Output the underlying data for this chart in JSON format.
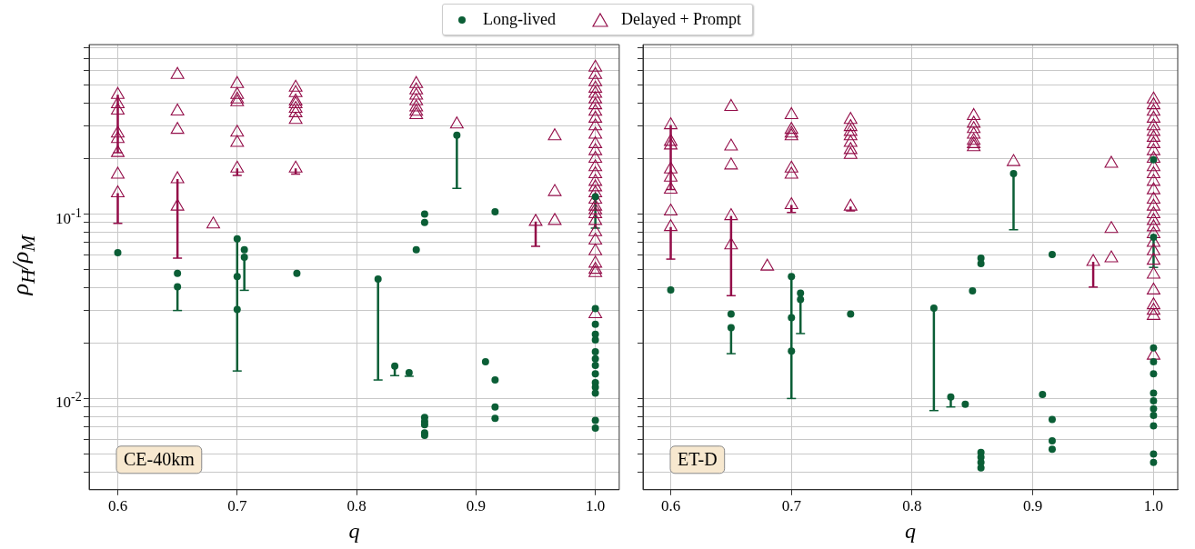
{
  "chart_data": [
    {
      "type": "scatter",
      "xlabel": "q",
      "ylabel": "ρ$_{H}$/ρ$_{M}$",
      "annotations": [
        "CE-40km"
      ],
      "log": "y",
      "grid": true,
      "legend": "top",
      "xlim": [
        0.576,
        1.02
      ],
      "xticks": [
        0.6,
        0.7,
        0.8,
        0.9,
        {
          "value": 1.0,
          "label": "1.0"
        }
      ],
      "ylim": [
        0.0032,
        0.83
      ],
      "yticks": [
        {
          "value": 0.004,
          "label": null
        },
        {
          "value": 0.005,
          "label": null
        },
        {
          "value": 0.006,
          "label": null
        },
        {
          "value": 0.007,
          "label": null
        },
        {
          "value": 0.008,
          "label": null
        },
        {
          "value": 0.009,
          "label": null
        },
        {
          "value": 0.01,
          "label": "10$^{-2}$"
        },
        {
          "value": 0.02,
          "label": null
        },
        {
          "value": 0.03,
          "label": null
        },
        {
          "value": 0.04,
          "label": null
        },
        {
          "value": 0.05,
          "label": null
        },
        {
          "value": 0.06,
          "label": null
        },
        {
          "value": 0.07,
          "label": null
        },
        {
          "value": 0.08,
          "label": null
        },
        {
          "value": 0.09,
          "label": null
        },
        {
          "value": 0.1,
          "label": "10$^{-1}$"
        },
        {
          "value": 0.2,
          "label": null
        },
        {
          "value": 0.3,
          "label": null
        },
        {
          "value": 0.4,
          "label": null
        },
        {
          "value": 0.5,
          "label": null
        },
        {
          "value": 0.6,
          "label": null
        },
        {
          "value": 0.7,
          "label": null
        },
        {
          "value": 0.8,
          "label": null
        }
      ],
      "series": [
        {
          "name": "Long-lived",
          "color": "#0b5e36",
          "marker": "circle",
          "x": [
            0.6,
            0.65,
            0.65,
            0.7,
            0.7,
            0.7,
            0.706,
            0.706,
            0.75,
            0.818,
            0.832,
            0.844,
            0.85,
            0.857,
            0.857,
            0.857,
            0.857,
            0.857,
            0.857,
            0.857,
            0.884,
            0.908,
            0.916,
            0.916,
            0.916,
            0.916,
            1.0,
            1.0,
            1.0,
            1.0,
            1.0,
            1.0,
            1.0,
            1.0,
            1.0,
            1.0,
            1.0,
            1.0,
            1.0,
            1.0
          ],
          "values": [
            0.0618,
            0.0477,
            0.0404,
            0.0734,
            0.0459,
            0.0304,
            0.064,
            0.0584,
            0.0477,
            0.0445,
            0.015,
            0.0138,
            0.064,
            0.1,
            0.09,
            0.0079,
            0.0075,
            0.0072,
            0.0065,
            0.0063,
            0.268,
            0.0158,
            0.103,
            0.0126,
            0.009,
            0.0078,
            0.124,
            0.0307,
            0.0253,
            0.0223,
            0.0208,
            0.0179,
            0.0164,
            0.0151,
            0.0136,
            0.0122,
            0.0115,
            0.0107,
            0.0076,
            0.0069
          ],
          "errors": [
            null,
            null,
            [
              0.03,
              0.0404
            ],
            [
              0.0141,
              0.0734
            ],
            null,
            null,
            null,
            [
              0.0386,
              0.0584
            ],
            null,
            [
              0.0126,
              0.0445
            ],
            [
              0.0133,
              0.015
            ],
            [
              0.0132,
              0.0138
            ],
            null,
            null,
            null,
            null,
            null,
            null,
            null,
            null,
            [
              0.138,
              0.268
            ],
            null,
            null,
            null,
            null,
            null,
            [
              0.084,
              0.124
            ],
            null,
            null,
            null,
            null,
            null,
            null,
            null,
            null,
            null,
            null,
            null,
            null,
            null
          ]
        },
        {
          "name": "Delayed + Prompt",
          "color": "#930c48",
          "marker": "triangle",
          "x": [
            0.6,
            0.6,
            0.6,
            0.6,
            0.6,
            0.6,
            0.6,
            0.6,
            0.65,
            0.65,
            0.65,
            0.65,
            0.65,
            0.68,
            0.7,
            0.7,
            0.7,
            0.7,
            0.7,
            0.7,
            0.7,
            0.749,
            0.749,
            0.749,
            0.749,
            0.749,
            0.749,
            0.749,
            0.749,
            0.85,
            0.85,
            0.85,
            0.85,
            0.85,
            0.85,
            0.85,
            0.884,
            0.95,
            0.966,
            0.966,
            0.966,
            1.0,
            1.0,
            1.0,
            1.0,
            1.0,
            1.0,
            1.0,
            1.0,
            1.0,
            1.0,
            1.0,
            1.0,
            1.0,
            1.0,
            1.0,
            1.0,
            1.0,
            1.0,
            1.0,
            1.0,
            1.0,
            1.0,
            1.0,
            1.0,
            1.0,
            1.0,
            1.0,
            1.0,
            1.0,
            1.0,
            1.0
          ],
          "values": [
            0.444,
            0.395,
            0.365,
            0.274,
            0.256,
            0.215,
            0.164,
            0.13,
            0.57,
            0.361,
            0.287,
            0.155,
            0.11,
            0.088,
            0.509,
            0.444,
            0.419,
            0.405,
            0.277,
            0.244,
            0.177,
            0.486,
            0.454,
            0.409,
            0.395,
            0.373,
            0.353,
            0.325,
            0.177,
            0.509,
            0.47,
            0.44,
            0.41,
            0.38,
            0.36,
            0.345,
            0.307,
            0.091,
            0.265,
            0.132,
            0.092,
            0.624,
            0.57,
            0.52,
            0.48,
            0.45,
            0.42,
            0.39,
            0.36,
            0.33,
            0.3,
            0.27,
            0.24,
            0.22,
            0.2,
            0.18,
            0.165,
            0.15,
            0.14,
            0.13,
            0.12,
            0.11,
            0.105,
            0.1,
            0.092,
            0.08,
            0.072,
            0.063,
            0.054,
            0.05,
            0.048,
            0.0287
          ],
          "errors": [
            [
              0.215,
              0.444
            ],
            null,
            null,
            null,
            null,
            null,
            null,
            [
              0.089,
              0.13
            ],
            null,
            null,
            null,
            [
              0.0577,
              0.155
            ],
            null,
            null,
            null,
            null,
            null,
            null,
            null,
            null,
            [
              0.162,
              0.177
            ],
            null,
            null,
            null,
            null,
            null,
            null,
            null,
            [
              0.165,
              0.177
            ],
            null,
            null,
            null,
            null,
            null,
            null,
            null,
            null,
            [
              0.0669,
              0.091
            ],
            null,
            null,
            null,
            null,
            null,
            null,
            null,
            null,
            null,
            null,
            null,
            null,
            null,
            null,
            null,
            null,
            null,
            null,
            null,
            null,
            null,
            null,
            null,
            null,
            null,
            null,
            null,
            null,
            null,
            null,
            null,
            null,
            null,
            null
          ]
        }
      ]
    },
    {
      "type": "scatter",
      "xlabel": "q",
      "annotations": [
        "ET-D"
      ],
      "log": "y",
      "grid": true,
      "tick_labels": "x",
      "xlim": [
        0.577,
        1.02
      ],
      "xticks": [
        0.6,
        0.7,
        0.8,
        0.9,
        {
          "value": 1.0,
          "label": "1.0"
        }
      ],
      "ylim": [
        0.0032,
        0.83
      ],
      "yticks": [
        {
          "value": 0.004,
          "label": null
        },
        {
          "value": 0.005,
          "label": null
        },
        {
          "value": 0.006,
          "label": null
        },
        {
          "value": 0.007,
          "label": null
        },
        {
          "value": 0.008,
          "label": null
        },
        {
          "value": 0.009,
          "label": null
        },
        {
          "value": 0.01,
          "label": null
        },
        {
          "value": 0.02,
          "label": null
        },
        {
          "value": 0.03,
          "label": null
        },
        {
          "value": 0.04,
          "label": null
        },
        {
          "value": 0.05,
          "label": null
        },
        {
          "value": 0.06,
          "label": null
        },
        {
          "value": 0.07,
          "label": null
        },
        {
          "value": 0.08,
          "label": null
        },
        {
          "value": 0.09,
          "label": null
        },
        {
          "value": 0.1,
          "label": null
        },
        {
          "value": 0.2,
          "label": null
        },
        {
          "value": 0.3,
          "label": null
        },
        {
          "value": 0.4,
          "label": null
        },
        {
          "value": 0.5,
          "label": null
        },
        {
          "value": 0.6,
          "label": null
        },
        {
          "value": 0.7,
          "label": null
        },
        {
          "value": 0.8,
          "label": null
        }
      ],
      "series": [
        {
          "color": "#0b5e36",
          "marker": "circle",
          "x": [
            0.6,
            0.65,
            0.65,
            0.7,
            0.7,
            0.7,
            0.7075,
            0.7075,
            0.749,
            0.818,
            0.832,
            0.844,
            0.85,
            0.857,
            0.857,
            0.857,
            0.857,
            0.857,
            0.857,
            0.884,
            0.908,
            0.916,
            0.916,
            0.916,
            0.916,
            1.0,
            1.0,
            1.0,
            1.0,
            1.0,
            1.0,
            1.0,
            1.0,
            1.0,
            1.0,
            1.0,
            1.0
          ],
          "values": [
            0.0388,
            0.0287,
            0.0242,
            0.0459,
            0.0274,
            0.0181,
            0.0373,
            0.0344,
            0.0287,
            0.0309,
            0.0102,
            0.0093,
            0.0383,
            0.0577,
            0.0539,
            0.0051,
            0.0048,
            0.0045,
            0.0042,
            0.166,
            0.0105,
            0.0604,
            0.0077,
            0.0059,
            0.0053,
            0.197,
            0.075,
            0.0188,
            0.0158,
            0.0136,
            0.0107,
            0.0097,
            0.0088,
            0.0081,
            0.0071,
            0.005,
            0.0045
          ],
          "errors": [
            null,
            null,
            [
              0.0175,
              0.0242
            ],
            [
              0.01,
              0.0459
            ],
            null,
            null,
            null,
            [
              0.0225,
              0.0344
            ],
            null,
            [
              0.0086,
              0.0309
            ],
            [
              0.009,
              0.0102
            ],
            null,
            null,
            null,
            null,
            null,
            null,
            null,
            null,
            [
              0.0823,
              0.166
            ],
            null,
            null,
            null,
            null,
            null,
            null,
            [
              0.0514,
              0.075
            ],
            null,
            null,
            null,
            null,
            null,
            null,
            null,
            null,
            null,
            null
          ]
        },
        {
          "color": "#930c48",
          "marker": "triangle",
          "x": [
            0.6,
            0.6,
            0.6,
            0.6,
            0.6,
            0.6,
            0.6,
            0.6,
            0.65,
            0.65,
            0.65,
            0.65,
            0.65,
            0.68,
            0.7,
            0.7,
            0.7,
            0.7,
            0.7,
            0.7,
            0.7,
            0.749,
            0.749,
            0.749,
            0.749,
            0.749,
            0.749,
            0.749,
            0.749,
            0.851,
            0.851,
            0.851,
            0.851,
            0.851,
            0.851,
            0.851,
            0.884,
            0.95,
            0.965,
            0.965,
            0.965,
            1.0,
            1.0,
            1.0,
            1.0,
            1.0,
            1.0,
            1.0,
            1.0,
            1.0,
            1.0,
            1.0,
            1.0,
            1.0,
            1.0,
            1.0,
            1.0,
            1.0,
            1.0,
            1.0,
            1.0,
            1.0,
            1.0,
            1.0,
            1.0,
            1.0,
            1.0,
            1.0,
            1.0,
            1.0
          ],
          "values": [
            0.304,
            0.247,
            0.236,
            0.175,
            0.158,
            0.136,
            0.1035,
            0.0852,
            0.382,
            0.233,
            0.184,
            0.0977,
            0.0678,
            0.052,
            0.345,
            0.287,
            0.274,
            0.265,
            0.177,
            0.164,
            0.112,
            0.325,
            0.297,
            0.28,
            0.265,
            0.244,
            0.223,
            0.21,
            0.11,
            0.341,
            0.31,
            0.29,
            0.27,
            0.25,
            0.24,
            0.231,
            0.192,
            0.0551,
            0.188,
            0.0832,
            0.0577,
            0.419,
            0.39,
            0.36,
            0.33,
            0.3,
            0.28,
            0.26,
            0.24,
            0.22,
            0.2,
            0.18,
            0.165,
            0.15,
            0.135,
            0.12,
            0.11,
            0.1,
            0.092,
            0.085,
            0.078,
            0.07,
            0.063,
            0.056,
            0.047,
            0.0386,
            0.0321,
            0.03,
            0.0281,
            0.0171
          ],
          "errors": [
            [
              0.136,
              0.304
            ],
            null,
            null,
            null,
            null,
            null,
            null,
            [
              0.057,
              0.0852
            ],
            null,
            null,
            null,
            [
              0.0361,
              0.0977
            ],
            null,
            null,
            null,
            null,
            null,
            null,
            null,
            null,
            [
              0.102,
              0.112
            ],
            null,
            null,
            null,
            null,
            null,
            null,
            null,
            [
              0.104,
              0.11
            ],
            null,
            null,
            null,
            null,
            null,
            null,
            null,
            null,
            [
              0.0402,
              0.0551
            ],
            null,
            null,
            null,
            null,
            null,
            null,
            null,
            null,
            null,
            null,
            null,
            null,
            null,
            null,
            null,
            null,
            null,
            null,
            null,
            null,
            null,
            null,
            null,
            null,
            null,
            null,
            null,
            null,
            null,
            null,
            null,
            null
          ]
        }
      ]
    }
  ]
}
